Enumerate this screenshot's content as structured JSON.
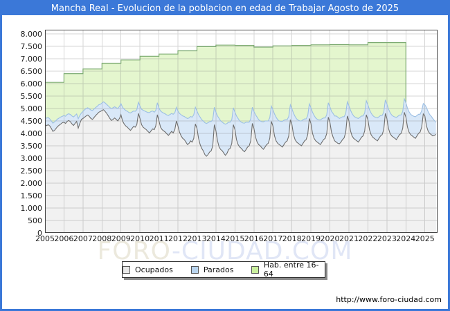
{
  "window": {
    "title": "Mancha Real - Evolucion de la poblacion en edad de Trabajar Agosto de 2025"
  },
  "footer": {
    "url": "http://www.foro-ciudad.com"
  },
  "watermark": {
    "part1": "FORO",
    "part2": "-CIUDAD.COM"
  },
  "colors": {
    "frame_blue": "#3b78d8",
    "grid": "#c9c9c9",
    "plot_border": "#444444",
    "ocupados_fill": "#f1f1f1",
    "ocupados_line": "#6e6e6e",
    "parados_fill": "#d9e8f8",
    "parados_line": "#9cbfe4",
    "hab_fill": "#e4f6ce",
    "hab_line": "#7dab72",
    "legend_ocupados_swatch": "#e8e8e8",
    "legend_parados_swatch": "#b9d4ee",
    "legend_hab_swatch": "#c9ef9d"
  },
  "legend": {
    "items": [
      {
        "label": "Ocupados",
        "swatch": "#e8e8e8"
      },
      {
        "label": "Parados",
        "swatch": "#b9d4ee"
      },
      {
        "label": "Hab. entre 16-64",
        "swatch": "#c9ef9d"
      }
    ]
  },
  "chart_data": {
    "type": "area",
    "stacked": true,
    "title": "Mancha Real - Evolucion de la poblacion en edad de Trabajar Agosto de 2025",
    "xlabel": "",
    "ylabel": "",
    "grid": true,
    "legend_position": "bottom",
    "x_range": [
      2005,
      2025.6667
    ],
    "ylim": [
      0,
      8000
    ],
    "yticks": {
      "values": [
        0,
        500,
        1000,
        1500,
        2000,
        2500,
        3000,
        3500,
        4000,
        4500,
        5000,
        5500,
        6000,
        6500,
        7000,
        7500,
        8000
      ],
      "labels": [
        "0",
        "500",
        "1.000",
        "1.500",
        "2.000",
        "2.500",
        "3.000",
        "3.500",
        "4.000",
        "4.500",
        "5.000",
        "5.500",
        "6.000",
        "6.500",
        "7.000",
        "7.500",
        "8.000"
      ]
    },
    "xticks": {
      "labels": [
        "2005",
        "2006",
        "2007",
        "2008",
        "2009",
        "2010",
        "2011",
        "2012",
        "2013",
        "2014",
        "2015",
        "2016",
        "2017",
        "2018",
        "2019",
        "2020",
        "2021",
        "2022",
        "2023",
        "2024",
        "2025"
      ]
    },
    "series": [
      {
        "name": "Ocupados",
        "frequency": "monthly",
        "start": "2005-01",
        "end": "2025-08",
        "values": [
          4360,
          4310,
          4350,
          4300,
          4200,
          4080,
          4120,
          4200,
          4280,
          4330,
          4380,
          4430,
          4450,
          4400,
          4480,
          4520,
          4470,
          4380,
          4320,
          4400,
          4480,
          4210,
          4400,
          4560,
          4600,
          4650,
          4700,
          4740,
          4680,
          4600,
          4560,
          4640,
          4720,
          4780,
          4850,
          4880,
          4920,
          4950,
          4880,
          4800,
          4700,
          4600,
          4520,
          4560,
          4620,
          4560,
          4500,
          4600,
          4750,
          4500,
          4380,
          4300,
          4250,
          4180,
          4120,
          4200,
          4280,
          4250,
          4350,
          4800,
          4600,
          4350,
          4250,
          4200,
          4150,
          4080,
          4020,
          4100,
          4180,
          4150,
          4300,
          4750,
          4500,
          4250,
          4150,
          4100,
          4050,
          3980,
          3920,
          4000,
          4080,
          4020,
          4150,
          4500,
          4300,
          4050,
          3900,
          3800,
          3750,
          3650,
          3550,
          3600,
          3700,
          3650,
          3800,
          4380,
          4200,
          3800,
          3550,
          3400,
          3300,
          3150,
          3080,
          3150,
          3250,
          3300,
          3500,
          4350,
          4100,
          3700,
          3450,
          3350,
          3300,
          3200,
          3120,
          3200,
          3350,
          3400,
          3600,
          4350,
          4150,
          3750,
          3550,
          3450,
          3400,
          3320,
          3260,
          3350,
          3450,
          3500,
          3700,
          4400,
          4200,
          3850,
          3650,
          3550,
          3500,
          3420,
          3360,
          3450,
          3550,
          3600,
          3800,
          4480,
          4300,
          3900,
          3700,
          3600,
          3550,
          3500,
          3450,
          3550,
          3650,
          3700,
          3900,
          4550,
          4350,
          3950,
          3750,
          3650,
          3600,
          3550,
          3500,
          3600,
          3700,
          3750,
          3950,
          4600,
          4400,
          4000,
          3800,
          3700,
          3650,
          3600,
          3550,
          3650,
          3750,
          3800,
          4000,
          4650,
          4450,
          4050,
          3850,
          3700,
          3650,
          3600,
          3580,
          3650,
          3750,
          3820,
          4050,
          4700,
          4500,
          4100,
          3900,
          3800,
          3750,
          3700,
          3650,
          3750,
          3850,
          3900,
          4100,
          4750,
          4550,
          4150,
          3950,
          3850,
          3800,
          3750,
          3700,
          3800,
          3900,
          3950,
          4150,
          4800,
          4600,
          4200,
          4000,
          3900,
          3850,
          3800,
          3750,
          3850,
          3950,
          4000,
          4200,
          4850,
          4650,
          4250,
          4050,
          3950,
          3900,
          3850,
          3800,
          3900,
          4000,
          4050,
          4250,
          4780,
          4700,
          4300,
          4100,
          4000,
          3950,
          3900,
          3920,
          3960
        ]
      },
      {
        "name": "Parados",
        "frequency": "monthly",
        "start": "2005-01",
        "end": "2025-08",
        "stacked_on": "Ocupados",
        "values": [
          280,
          300,
          290,
          280,
          300,
          330,
          340,
          320,
          300,
          290,
          280,
          260,
          270,
          290,
          280,
          270,
          290,
          320,
          340,
          320,
          300,
          380,
          320,
          260,
          280,
          300,
          300,
          290,
          310,
          340,
          360,
          340,
          320,
          310,
          300,
          290,
          300,
          320,
          340,
          360,
          400,
          440,
          480,
          470,
          450,
          470,
          500,
          480,
          450,
          550,
          600,
          620,
          640,
          660,
          700,
          660,
          620,
          640,
          600,
          450,
          500,
          620,
          680,
          700,
          720,
          760,
          820,
          780,
          720,
          700,
          620,
          480,
          520,
          650,
          700,
          710,
          730,
          760,
          800,
          760,
          720,
          750,
          680,
          550,
          600,
          750,
          850,
          900,
          930,
          980,
          1050,
          1020,
          980,
          1000,
          950,
          670,
          700,
          950,
          1100,
          1150,
          1200,
          1280,
          1320,
          1280,
          1220,
          1180,
          1050,
          700,
          750,
          1000,
          1150,
          1150,
          1150,
          1200,
          1250,
          1200,
          1100,
          1050,
          950,
          680,
          700,
          950,
          1050,
          1050,
          1050,
          1100,
          1150,
          1100,
          1000,
          950,
          880,
          650,
          680,
          900,
          1000,
          1000,
          1000,
          1050,
          1100,
          1050,
          950,
          900,
          830,
          620,
          650,
          880,
          950,
          950,
          950,
          980,
          1030,
          980,
          900,
          850,
          780,
          600,
          640,
          860,
          930,
          930,
          930,
          950,
          1000,
          950,
          880,
          830,
          760,
          590,
          630,
          850,
          920,
          920,
          920,
          940,
          990,
          940,
          870,
          820,
          750,
          580,
          620,
          840,
          950,
          1000,
          1050,
          1050,
          1020,
          980,
          920,
          850,
          750,
          570,
          610,
          830,
          900,
          900,
          900,
          920,
          950,
          900,
          850,
          800,
          720,
          560,
          600,
          800,
          870,
          870,
          870,
          890,
          920,
          870,
          820,
          770,
          700,
          550,
          590,
          780,
          840,
          840,
          840,
          860,
          890,
          840,
          790,
          740,
          680,
          540,
          580,
          760,
          820,
          820,
          820,
          840,
          870,
          820,
          770,
          720,
          660,
          420,
          450,
          740,
          780,
          760,
          740,
          700,
          600,
          480
        ]
      },
      {
        "name": "Hab. entre 16-64",
        "frequency": "yearly_step",
        "start": 2005,
        "end": 2024,
        "values": [
          6050,
          6400,
          6590,
          6820,
          6950,
          7100,
          7190,
          7320,
          7490,
          7550,
          7540,
          7470,
          7520,
          7540,
          7560,
          7570,
          7560,
          7650,
          7650
        ]
      }
    ]
  }
}
